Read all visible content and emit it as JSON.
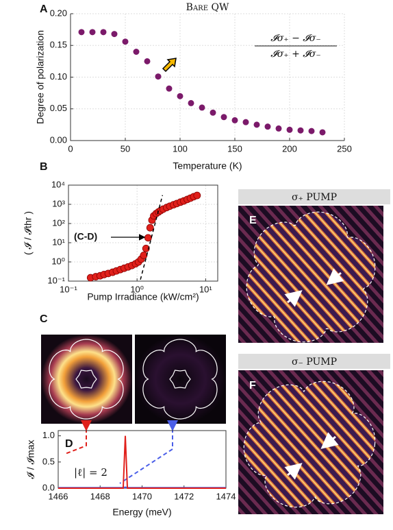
{
  "panel_labels": [
    "A",
    "B",
    "C",
    "D",
    "E",
    "F"
  ],
  "chart_data": [
    {
      "type": "scatter",
      "title": "Bare QW",
      "xlabel": "Temperature (K)",
      "ylabel": "Degree of polarization",
      "xlim": [
        0,
        250
      ],
      "xticks": [
        0,
        50,
        100,
        150,
        200,
        250
      ],
      "ylim": [
        0,
        0.2
      ],
      "yticks": [
        {
          "value": 0,
          "label": "0.00"
        },
        {
          "value": 0.05,
          "label": "0.05"
        },
        {
          "value": 0.1,
          "label": "0.10"
        },
        {
          "value": 0.15,
          "label": "0.15"
        },
        {
          "value": 0.2,
          "label": "0.20"
        }
      ],
      "grid": true,
      "frame": "left-bottom",
      "annotation": {
        "numerator": "𝓘σ₊ − 𝓘σ₋",
        "denominator": "𝓘σ₊ + 𝓘σ₋"
      },
      "series": [
        {
          "style": "markers",
          "color": "#7b1a6a",
          "x": [
            10,
            20,
            30,
            40,
            50,
            60,
            70,
            80,
            90,
            100,
            110,
            120,
            130,
            140,
            150,
            160,
            170,
            180,
            190,
            200,
            210,
            220,
            230
          ],
          "values": [
            0.171,
            0.171,
            0.171,
            0.168,
            0.156,
            0.14,
            0.125,
            0.101,
            0.082,
            0.07,
            0.059,
            0.052,
            0.044,
            0.037,
            0.032,
            0.029,
            0.025,
            0.022,
            0.019,
            0.017,
            0.016,
            0.015,
            0.013
          ]
        }
      ]
    },
    {
      "type": "scatter",
      "xlabel": "Pump Irradiance (kW/cm²)",
      "ylabel": "( 𝓘 / 𝓘thr )",
      "xscale": "log",
      "yscale": "log",
      "xlim": [
        0.1,
        15
      ],
      "xticks": [
        {
          "value": 0.1,
          "label": "10⁻¹"
        },
        {
          "value": 1,
          "label": "10⁰"
        },
        {
          "value": 10,
          "label": "10¹"
        }
      ],
      "ylim": [
        0.1,
        10000
      ],
      "yticks": [
        {
          "value": 0.1,
          "label": "10⁻¹"
        },
        {
          "value": 1,
          "label": "10⁰"
        },
        {
          "value": 10,
          "label": "10¹"
        },
        {
          "value": 100,
          "label": "10²"
        },
        {
          "value": 1000,
          "label": "10³"
        },
        {
          "value": 10000,
          "label": "10⁴"
        }
      ],
      "grid": true,
      "frame": "box",
      "annotation": "(C-D)",
      "series": [
        {
          "style": "markers",
          "color": "#e0201b",
          "x": [
            0.21,
            0.25,
            0.29,
            0.33,
            0.38,
            0.44,
            0.5,
            0.57,
            0.65,
            0.74,
            0.84,
            0.95,
            1.05,
            1.15,
            1.25,
            1.35,
            1.45,
            1.55,
            1.65,
            1.75,
            1.9,
            2.05,
            2.2,
            2.4,
            2.7,
            3.0,
            3.4,
            3.8,
            4.3,
            4.8,
            5.4,
            6.0,
            6.7,
            7.5
          ],
          "values": [
            0.15,
            0.17,
            0.19,
            0.22,
            0.25,
            0.29,
            0.34,
            0.4,
            0.47,
            0.55,
            0.65,
            0.8,
            1.0,
            1.4,
            2.2,
            5,
            18,
            60,
            150,
            250,
            330,
            400,
            470,
            560,
            680,
            800,
            950,
            1100,
            1300,
            1500,
            1800,
            2100,
            2500,
            2900
          ]
        },
        {
          "style": "dashed",
          "color": "#000000",
          "x": [
            1.12,
            2.35
          ],
          "values": [
            0.12,
            3000
          ]
        }
      ]
    },
    {
      "type": "line",
      "xlabel": "Energy (meV)",
      "ylabel": "𝓘 / 𝓘max",
      "xlim": [
        1466,
        1474
      ],
      "xticks": [
        1466,
        1468,
        1470,
        1472,
        1474
      ],
      "ylim": [
        0,
        1.1
      ],
      "yticks": [
        {
          "value": 0,
          "label": "0.0"
        },
        0.5,
        {
          "value": 1,
          "label": "1.0"
        }
      ],
      "grid": false,
      "frame": "box",
      "annotation": "|ℓ| = 2",
      "series": [
        {
          "style": "line",
          "color": "#4a5ee8",
          "x": [
            1466,
            1469.1,
            1469.2,
            1469.3,
            1474
          ],
          "values": [
            0.01,
            0.01,
            0.02,
            0.01,
            0.01
          ]
        },
        {
          "style": "line",
          "color": "#e0201b",
          "x": [
            1466,
            1469.1,
            1469.2,
            1469.3,
            1474
          ],
          "values": [
            0,
            0,
            1.0,
            0,
            0
          ]
        }
      ]
    }
  ],
  "images": {
    "E": {
      "title": "σ₊ PUMP"
    },
    "F": {
      "title": "σ₋ PUMP"
    }
  }
}
